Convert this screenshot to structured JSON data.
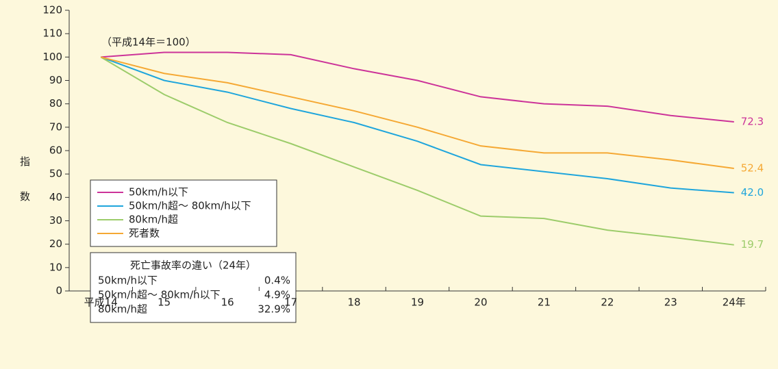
{
  "chart_data": {
    "type": "line",
    "annotation": "（平成14年＝100）",
    "ylabel": "指数",
    "categories": [
      "平成14",
      "15",
      "16",
      "17",
      "18",
      "19",
      "20",
      "21",
      "22",
      "23",
      "24年"
    ],
    "series": [
      {
        "name": "50km/h以下",
        "color": "#cc3399",
        "values": [
          100,
          102,
          102,
          101,
          95,
          90,
          83,
          80,
          79,
          75,
          72.3
        ],
        "value_labels": [
          null,
          null,
          null,
          null,
          null,
          null,
          null,
          null,
          null,
          null,
          "72.3"
        ]
      },
      {
        "name": "50km/h超～ 80km/h以下",
        "color": "#1ea5dc",
        "values": [
          100,
          90,
          85,
          78,
          72,
          64,
          54,
          51,
          48,
          44,
          42.0
        ],
        "value_labels": [
          null,
          null,
          null,
          null,
          null,
          null,
          null,
          null,
          null,
          null,
          "42.0"
        ]
      },
      {
        "name": "80km/h超",
        "color": "#9ccc6a",
        "values": [
          100,
          84,
          72,
          63,
          53,
          43,
          32,
          31,
          26,
          23,
          19.7
        ],
        "value_labels": [
          null,
          null,
          null,
          null,
          null,
          null,
          null,
          null,
          null,
          null,
          "19.7"
        ]
      },
      {
        "name": "死者数",
        "color": "#f5a833",
        "values": [
          100,
          93,
          89,
          83,
          77,
          70,
          62,
          59,
          59,
          56,
          52.4
        ],
        "value_labels": [
          null,
          null,
          null,
          null,
          null,
          null,
          null,
          null,
          null,
          null,
          "52.4"
        ]
      }
    ],
    "ylim": [
      0,
      120
    ],
    "yticks": [
      0,
      10,
      20,
      30,
      40,
      50,
      60,
      70,
      80,
      90,
      100,
      110,
      120
    ],
    "grid": false,
    "rate_table": {
      "title": "死亡事故率の違い（24年）",
      "rows": [
        [
          "50km/h以下",
          "0.4%"
        ],
        [
          "50km/h超～ 80km/h以下",
          "4.9%"
        ],
        [
          "80km/h超",
          "32.9%"
        ]
      ]
    }
  }
}
